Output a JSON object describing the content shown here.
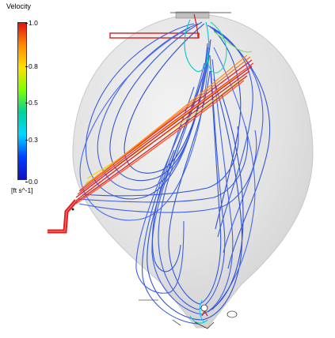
{
  "legend": {
    "title": "Velocity",
    "unit": "[ft s^-1]",
    "ticks": [
      "1.0",
      "0.8",
      "0.5",
      "0.3",
      "0.0"
    ],
    "colors": [
      "#e01010",
      "#ff8c00",
      "#ffe000",
      "#7fff00",
      "#00d0a0",
      "#00d8ff",
      "#0040ff",
      "#1010c0"
    ]
  },
  "vessel": {
    "fill": "#e2e2e2",
    "edge": "#c8c8c8"
  },
  "streamlines": {
    "inlet_color": "#e02020",
    "loop_color": "#3a5ce0",
    "accent_colors": [
      "#00d0c8",
      "#f0d000",
      "#7fe060"
    ]
  }
}
